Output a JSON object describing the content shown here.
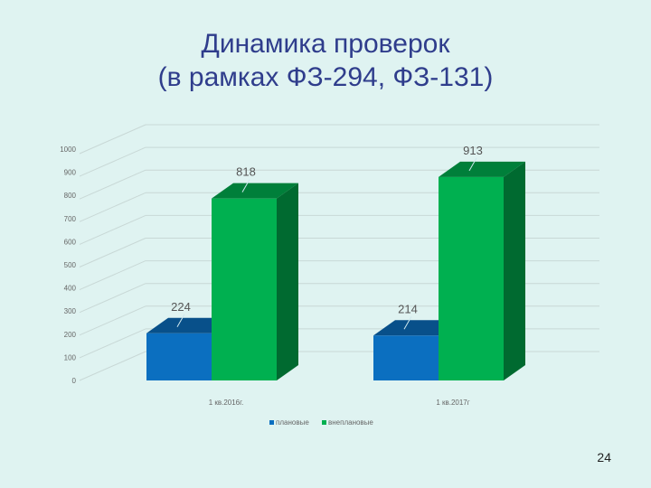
{
  "slide": {
    "title_line1": "Динамика проверок",
    "title_line2": "(в рамках ФЗ-294, ФЗ-131)",
    "page_number": "24"
  },
  "chart_data": {
    "type": "bar",
    "style": "3d-clustered-column",
    "categories": [
      "1 кв.2016г.",
      "1 кв.2017г"
    ],
    "series": [
      {
        "name": "плановые",
        "values": [
          224,
          214
        ],
        "color": "#0b6fc0"
      },
      {
        "name": "внеплановые",
        "values": [
          818,
          913
        ],
        "color": "#00b050"
      }
    ],
    "y_ticks": [
      "0",
      "100",
      "200",
      "300",
      "400",
      "500",
      "600",
      "700",
      "800",
      "900",
      "1000"
    ],
    "ylim": [
      0,
      1000
    ],
    "title": "",
    "xlabel": "",
    "ylabel": "",
    "grid": true,
    "legend_position": "bottom",
    "data_labels": [
      "224",
      "818",
      "214",
      "913"
    ]
  }
}
